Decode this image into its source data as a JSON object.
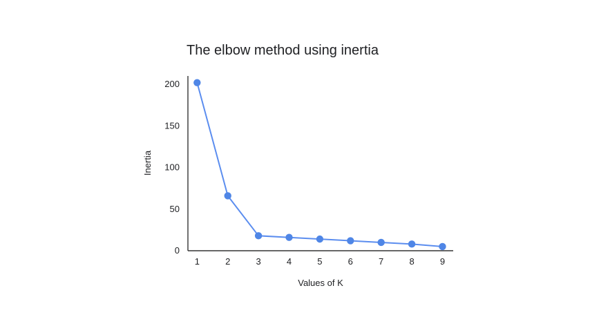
{
  "chart_data": {
    "type": "line",
    "title": "The elbow method using inertia",
    "xlabel": "Values of K",
    "ylabel": "Inertia",
    "x": [
      1,
      2,
      3,
      4,
      5,
      6,
      7,
      8,
      9
    ],
    "series": [
      {
        "values": [
          202,
          66,
          18,
          16,
          14,
          12,
          10,
          8,
          5
        ]
      }
    ],
    "y_ticks": [
      0,
      50,
      100,
      150,
      200
    ],
    "x_ticks": [
      1,
      2,
      3,
      4,
      5,
      6,
      7,
      8,
      9
    ],
    "ylim": [
      0,
      210
    ],
    "xlim": [
      0.7,
      9.35
    ],
    "grid": false,
    "colors": {
      "series": "#5b8def",
      "point": "#4f86e6",
      "axis": "#333333",
      "text": "#202124"
    }
  }
}
